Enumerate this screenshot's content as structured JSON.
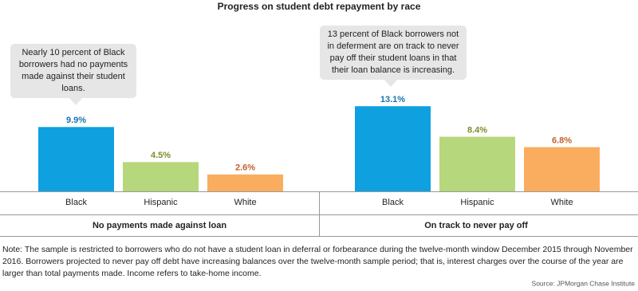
{
  "title": "Progress on student debt repayment by race",
  "chart_data": [
    {
      "type": "bar",
      "xlabel": "No payments made against loan",
      "categories": [
        "Black",
        "Hispanic",
        "White"
      ],
      "values": [
        9.9,
        4.5,
        2.6
      ],
      "value_labels": [
        "9.9%",
        "4.5%",
        "2.6%"
      ],
      "colors": [
        "#0fa0e0",
        "#b6d77c",
        "#fbad5f"
      ],
      "value_label_colors": [
        "#1a73b0",
        "#7a8f2c",
        "#c2622a"
      ],
      "annotation": [
        "Nearly 10 percent of Black",
        "borrowers had no payments",
        "made against their student",
        "loans."
      ]
    },
    {
      "type": "bar",
      "xlabel": "On track to never pay off",
      "categories": [
        "Black",
        "Hispanic",
        "White"
      ],
      "values": [
        13.1,
        8.4,
        6.8
      ],
      "value_labels": [
        "13.1%",
        "8.4%",
        "6.8%"
      ],
      "colors": [
        "#0fa0e0",
        "#b6d77c",
        "#fbad5f"
      ],
      "value_label_colors": [
        "#1a73b0",
        "#7a8f2c",
        "#c2622a"
      ],
      "annotation": [
        "13 percent of Black borrowers not",
        "in deferment are on track to never",
        "pay off their student loans in that",
        "their loan balance is increasing."
      ]
    }
  ],
  "note": [
    "Note: The sample is restricted to borrowers who do not have a student loan in deferral or forbearance during the twelve-month window December 2015 through November",
    "2016. Borrowers projected to never pay off debt have increasing balances over the twelve-month sample period; that is, interest charges over the course of the year are",
    "larger than total payments made. Income refers to take-home income."
  ],
  "source": "Source: JPMorgan Chase Institute"
}
